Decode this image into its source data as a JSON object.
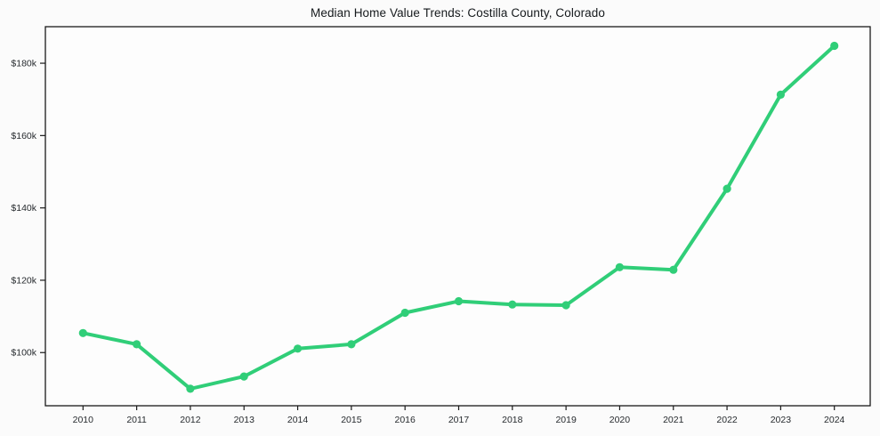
{
  "chart_data": {
    "type": "line",
    "title": "Median Home Value Trends: Costilla County, Colorado",
    "xlabel": "",
    "ylabel": "",
    "grid": false,
    "legend": false,
    "x": [
      2010,
      2011,
      2012,
      2013,
      2014,
      2015,
      2016,
      2017,
      2018,
      2019,
      2020,
      2021,
      2022,
      2023,
      2024
    ],
    "values": [
      105400,
      102300,
      90000,
      93400,
      101100,
      102300,
      111000,
      114200,
      113300,
      113100,
      123600,
      122900,
      145300,
      171300,
      184800
    ],
    "ytick_values": [
      100000,
      120000,
      140000,
      160000,
      180000
    ],
    "ytick_labels": [
      "$100k",
      "$120k",
      "$140k",
      "$160k",
      "$180k"
    ],
    "ylim": [
      85300,
      190100
    ],
    "line_color": "#30ce78",
    "marker": "circle",
    "spine_color": "#1a1a1a",
    "tick_color": "#262a2e",
    "plot_bg": "#fdfdfd"
  }
}
